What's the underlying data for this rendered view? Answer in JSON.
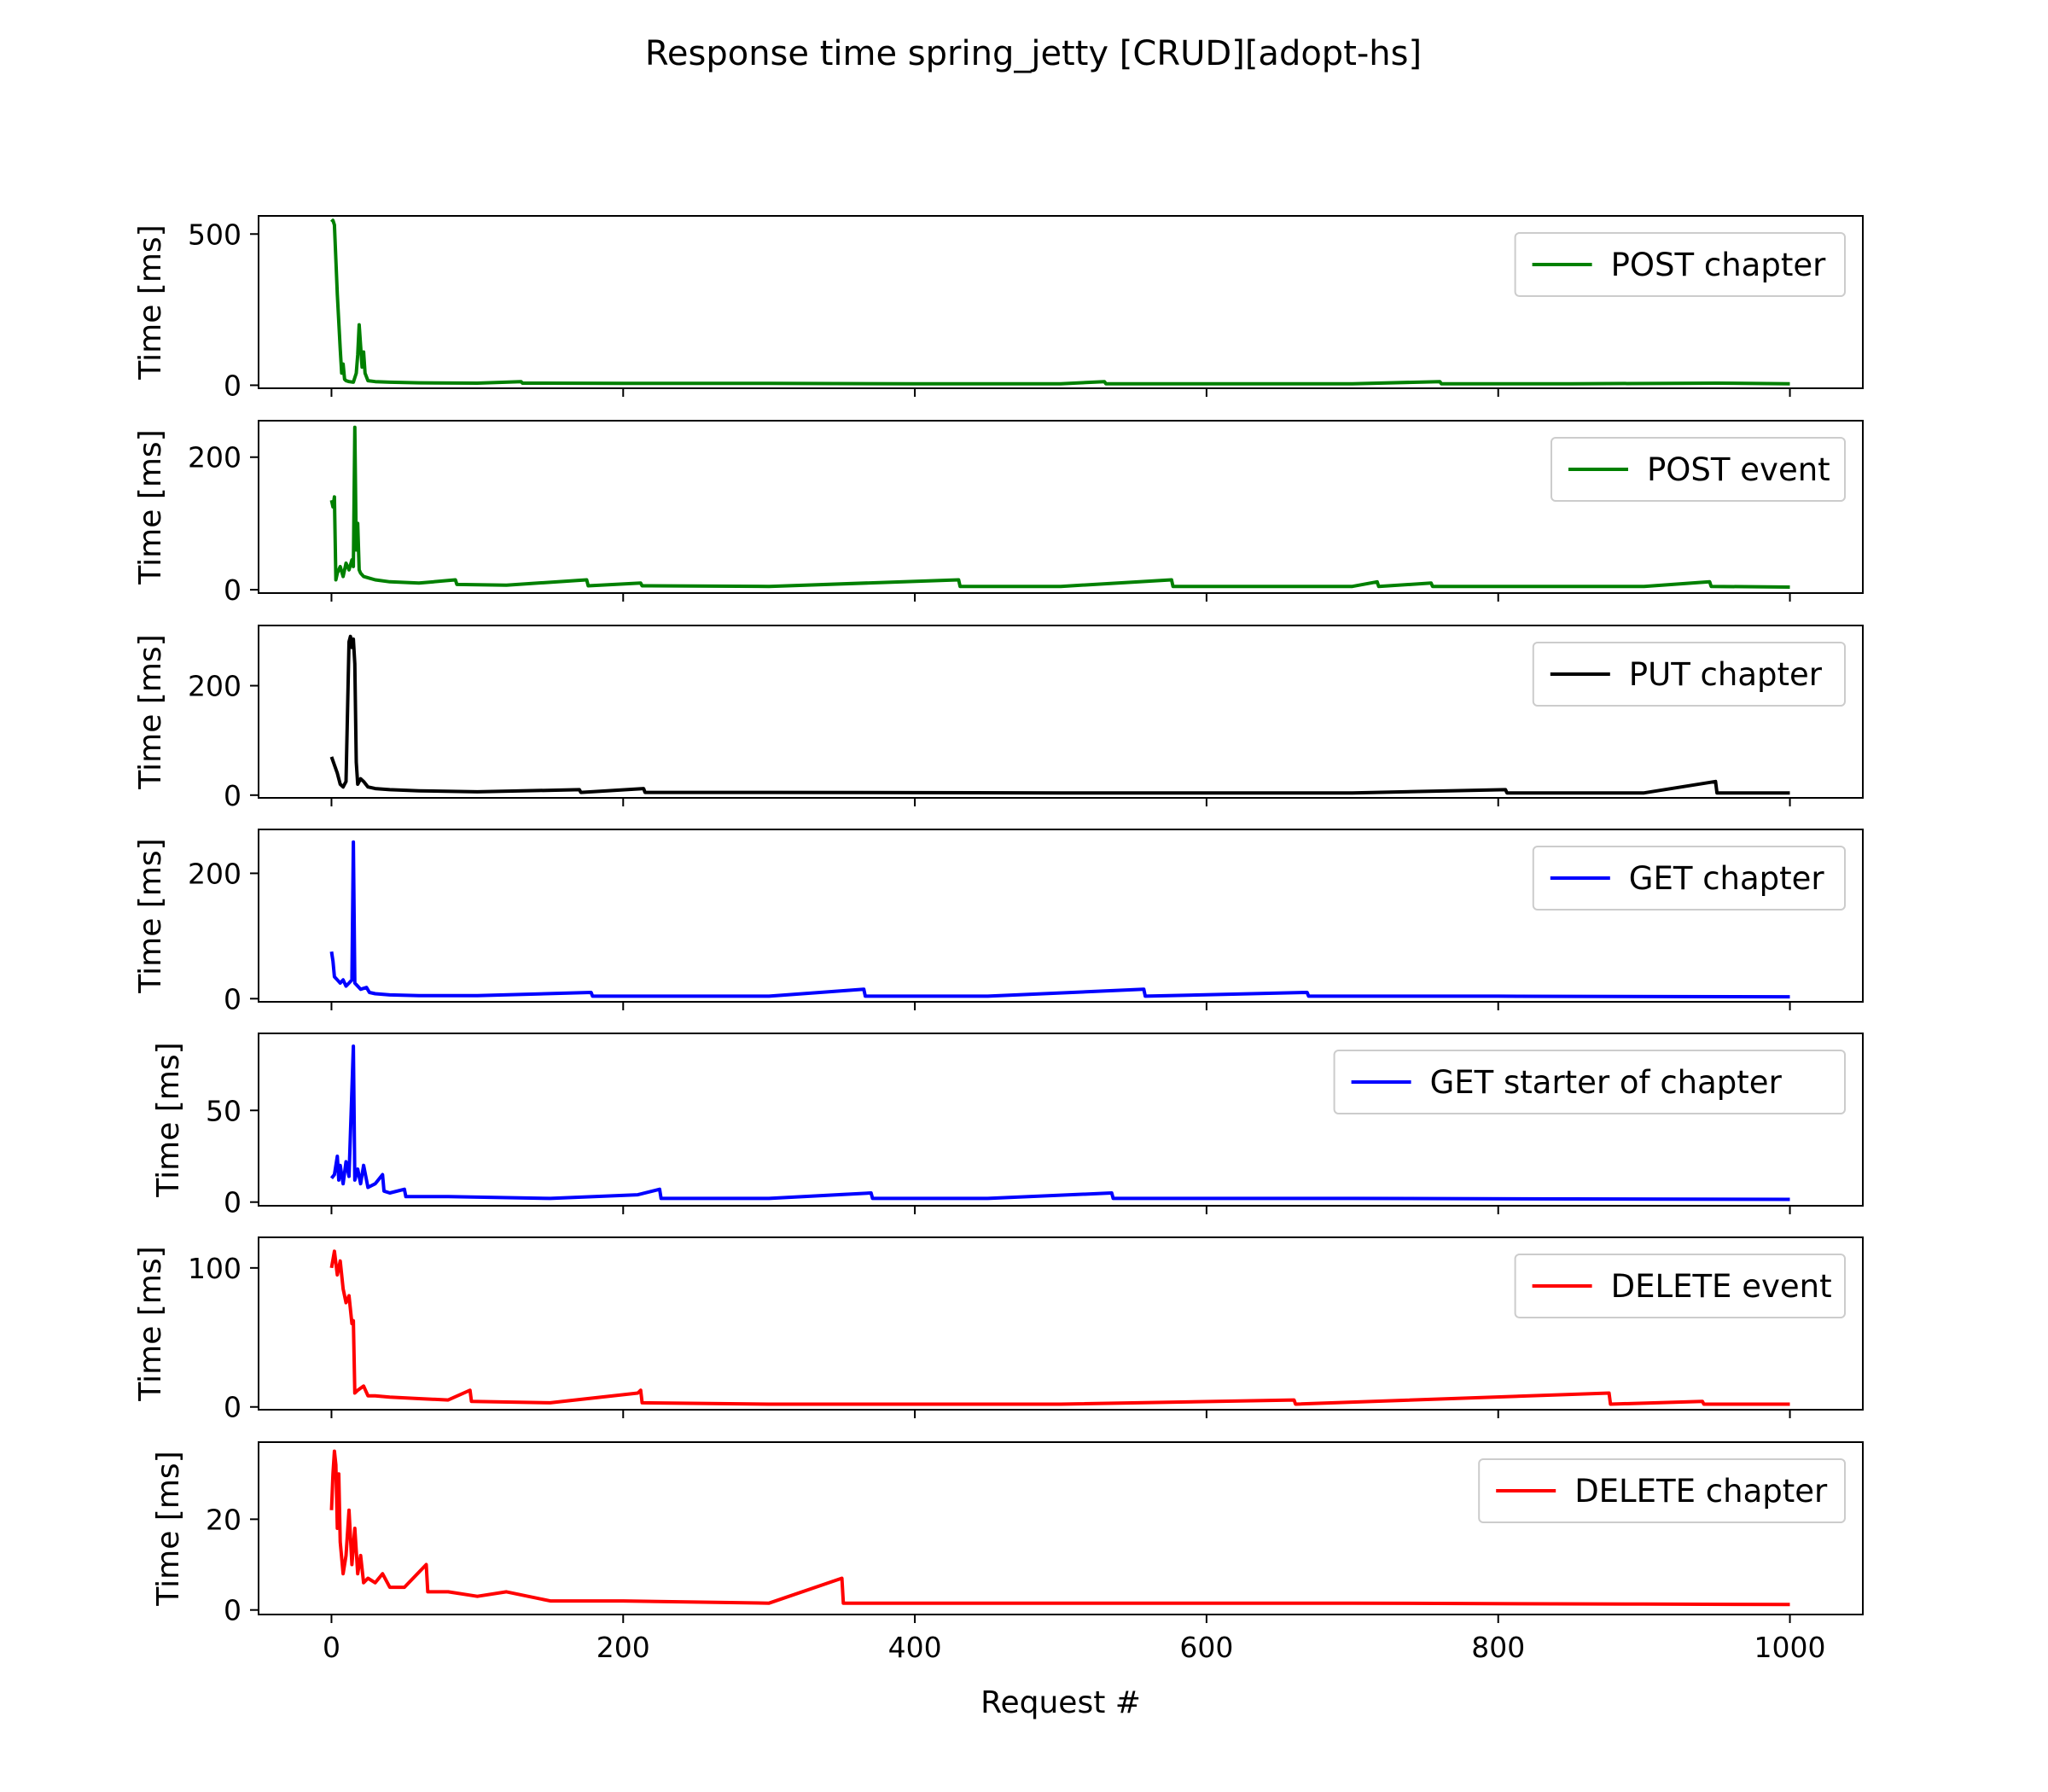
{
  "chart_data": {
    "type": "line",
    "title": "Response time spring_jetty [CRUD][adopt-hs]",
    "xlabel": "Request #",
    "ylabel": "Time [ms]",
    "xlim": [
      -50,
      1050
    ],
    "xticks": [
      0,
      200,
      400,
      600,
      800,
      1000
    ],
    "legend_position": "top-right",
    "grid": false,
    "panels": [
      {
        "name": "POST chapter",
        "color": "#008000",
        "ylim": [
          -10,
          560
        ],
        "yticks": [
          0,
          500
        ],
        "points": [
          [
            0,
            540
          ],
          [
            1,
            545
          ],
          [
            2,
            530
          ],
          [
            4,
            300
          ],
          [
            6,
            120
          ],
          [
            7,
            40
          ],
          [
            8,
            70
          ],
          [
            9,
            20
          ],
          [
            10,
            15
          ],
          [
            12,
            12
          ],
          [
            15,
            10
          ],
          [
            17,
            40
          ],
          [
            18,
            100
          ],
          [
            19,
            200
          ],
          [
            20,
            130
          ],
          [
            21,
            60
          ],
          [
            22,
            110
          ],
          [
            23,
            40
          ],
          [
            25,
            15
          ],
          [
            30,
            12
          ],
          [
            40,
            10
          ],
          [
            60,
            8
          ],
          [
            100,
            7
          ],
          [
            130,
            12
          ],
          [
            131,
            7
          ],
          [
            200,
            6
          ],
          [
            300,
            6
          ],
          [
            400,
            5
          ],
          [
            500,
            5
          ],
          [
            530,
            12
          ],
          [
            531,
            5
          ],
          [
            600,
            5
          ],
          [
            700,
            5
          ],
          [
            760,
            12
          ],
          [
            761,
            5
          ],
          [
            850,
            5
          ],
          [
            950,
            7
          ],
          [
            1000,
            5
          ]
        ]
      },
      {
        "name": "POST event",
        "color": "#008000",
        "ylim": [
          -5,
          255
        ],
        "yticks": [
          0,
          200
        ],
        "points": [
          [
            0,
            135
          ],
          [
            1,
            125
          ],
          [
            2,
            140
          ],
          [
            3,
            15
          ],
          [
            4,
            25
          ],
          [
            6,
            35
          ],
          [
            8,
            20
          ],
          [
            10,
            40
          ],
          [
            12,
            30
          ],
          [
            14,
            45
          ],
          [
            15,
            35
          ],
          [
            16,
            245
          ],
          [
            17,
            60
          ],
          [
            18,
            100
          ],
          [
            19,
            30
          ],
          [
            20,
            25
          ],
          [
            22,
            20
          ],
          [
            25,
            18
          ],
          [
            30,
            15
          ],
          [
            40,
            12
          ],
          [
            60,
            10
          ],
          [
            85,
            15
          ],
          [
            86,
            8
          ],
          [
            120,
            7
          ],
          [
            175,
            15
          ],
          [
            176,
            6
          ],
          [
            212,
            10
          ],
          [
            213,
            6
          ],
          [
            300,
            5
          ],
          [
            430,
            15
          ],
          [
            431,
            5
          ],
          [
            500,
            5
          ],
          [
            576,
            15
          ],
          [
            577,
            5
          ],
          [
            700,
            5
          ],
          [
            717,
            12
          ],
          [
            718,
            5
          ],
          [
            754,
            10
          ],
          [
            755,
            5
          ],
          [
            900,
            5
          ],
          [
            945,
            12
          ],
          [
            946,
            5
          ],
          [
            1000,
            4
          ]
        ]
      },
      {
        "name": "PUT chapter",
        "color": "#000000",
        "ylim": [
          -5,
          310
        ],
        "yticks": [
          0,
          200
        ],
        "points": [
          [
            0,
            70
          ],
          [
            2,
            55
          ],
          [
            4,
            40
          ],
          [
            6,
            20
          ],
          [
            8,
            15
          ],
          [
            10,
            25
          ],
          [
            12,
            280
          ],
          [
            13,
            290
          ],
          [
            14,
            270
          ],
          [
            15,
            285
          ],
          [
            16,
            240
          ],
          [
            17,
            60
          ],
          [
            18,
            20
          ],
          [
            20,
            30
          ],
          [
            22,
            25
          ],
          [
            25,
            15
          ],
          [
            30,
            12
          ],
          [
            40,
            10
          ],
          [
            60,
            8
          ],
          [
            100,
            6
          ],
          [
            170,
            10
          ],
          [
            171,
            5
          ],
          [
            214,
            12
          ],
          [
            215,
            5
          ],
          [
            300,
            5
          ],
          [
            500,
            4
          ],
          [
            700,
            4
          ],
          [
            805,
            10
          ],
          [
            806,
            4
          ],
          [
            900,
            4
          ],
          [
            949,
            25
          ],
          [
            950,
            4
          ],
          [
            1000,
            4
          ]
        ]
      },
      {
        "name": "GET chapter",
        "color": "#0000ff",
        "ylim": [
          -5,
          270
        ],
        "yticks": [
          0,
          200
        ],
        "points": [
          [
            0,
            75
          ],
          [
            1,
            60
          ],
          [
            2,
            35
          ],
          [
            4,
            30
          ],
          [
            6,
            25
          ],
          [
            8,
            30
          ],
          [
            10,
            20
          ],
          [
            12,
            25
          ],
          [
            14,
            30
          ],
          [
            15,
            250
          ],
          [
            16,
            25
          ],
          [
            18,
            20
          ],
          [
            20,
            15
          ],
          [
            24,
            18
          ],
          [
            26,
            10
          ],
          [
            30,
            8
          ],
          [
            40,
            6
          ],
          [
            60,
            5
          ],
          [
            100,
            5
          ],
          [
            178,
            10
          ],
          [
            179,
            4
          ],
          [
            300,
            4
          ],
          [
            365,
            15
          ],
          [
            366,
            4
          ],
          [
            450,
            4
          ],
          [
            557,
            15
          ],
          [
            558,
            4
          ],
          [
            669,
            10
          ],
          [
            670,
            4
          ],
          [
            800,
            4
          ],
          [
            1000,
            3
          ]
        ]
      },
      {
        "name": "GET starter of chapter",
        "color": "#0000ff",
        "ylim": [
          -2,
          92
        ],
        "yticks": [
          0,
          50
        ],
        "points": [
          [
            0,
            13
          ],
          [
            2,
            15
          ],
          [
            4,
            25
          ],
          [
            5,
            12
          ],
          [
            6,
            20
          ],
          [
            8,
            10
          ],
          [
            10,
            22
          ],
          [
            12,
            14
          ],
          [
            15,
            85
          ],
          [
            16,
            12
          ],
          [
            18,
            18
          ],
          [
            20,
            10
          ],
          [
            22,
            20
          ],
          [
            25,
            8
          ],
          [
            30,
            10
          ],
          [
            35,
            15
          ],
          [
            36,
            6
          ],
          [
            40,
            5
          ],
          [
            50,
            7
          ],
          [
            51,
            3
          ],
          [
            80,
            3
          ],
          [
            150,
            2
          ],
          [
            210,
            4
          ],
          [
            225,
            7
          ],
          [
            226,
            2
          ],
          [
            300,
            2
          ],
          [
            370,
            5
          ],
          [
            371,
            2
          ],
          [
            450,
            2
          ],
          [
            535,
            5
          ],
          [
            536,
            2
          ],
          [
            700,
            2
          ],
          [
            1000,
            1.5
          ]
        ]
      },
      {
        "name": "DELETE event",
        "color": "#ff0000",
        "ylim": [
          -2,
          122
        ],
        "yticks": [
          0,
          100
        ],
        "points": [
          [
            0,
            100
          ],
          [
            2,
            112
          ],
          [
            4,
            95
          ],
          [
            6,
            105
          ],
          [
            8,
            85
          ],
          [
            10,
            75
          ],
          [
            12,
            80
          ],
          [
            14,
            60
          ],
          [
            15,
            62
          ],
          [
            16,
            10
          ],
          [
            18,
            12
          ],
          [
            22,
            15
          ],
          [
            25,
            8
          ],
          [
            30,
            8
          ],
          [
            40,
            7
          ],
          [
            60,
            6
          ],
          [
            80,
            5
          ],
          [
            95,
            12
          ],
          [
            96,
            4
          ],
          [
            150,
            3
          ],
          [
            210,
            10
          ],
          [
            212,
            12
          ],
          [
            213,
            3
          ],
          [
            300,
            2
          ],
          [
            500,
            2
          ],
          [
            660,
            5
          ],
          [
            661,
            2
          ],
          [
            876,
            10
          ],
          [
            877,
            2
          ],
          [
            940,
            4
          ],
          [
            941,
            2
          ],
          [
            1000,
            2
          ]
        ]
      },
      {
        "name": "DELETE chapter",
        "color": "#ff0000",
        "ylim": [
          -1,
          37
        ],
        "yticks": [
          0,
          20
        ],
        "points": [
          [
            0,
            22
          ],
          [
            1,
            30
          ],
          [
            2,
            35
          ],
          [
            3,
            32
          ],
          [
            4,
            18
          ],
          [
            5,
            30
          ],
          [
            6,
            15
          ],
          [
            8,
            8
          ],
          [
            10,
            12
          ],
          [
            12,
            22
          ],
          [
            14,
            10
          ],
          [
            16,
            18
          ],
          [
            18,
            8
          ],
          [
            20,
            12
          ],
          [
            22,
            6
          ],
          [
            25,
            7
          ],
          [
            30,
            6
          ],
          [
            35,
            8
          ],
          [
            40,
            5
          ],
          [
            50,
            5
          ],
          [
            65,
            10
          ],
          [
            66,
            4
          ],
          [
            80,
            4
          ],
          [
            100,
            3
          ],
          [
            120,
            4
          ],
          [
            150,
            2
          ],
          [
            200,
            2
          ],
          [
            300,
            1.5
          ],
          [
            350,
            7
          ],
          [
            351,
            1.5
          ],
          [
            500,
            1.5
          ],
          [
            700,
            1.5
          ],
          [
            900,
            1.3
          ],
          [
            1000,
            1.2
          ]
        ]
      }
    ]
  }
}
